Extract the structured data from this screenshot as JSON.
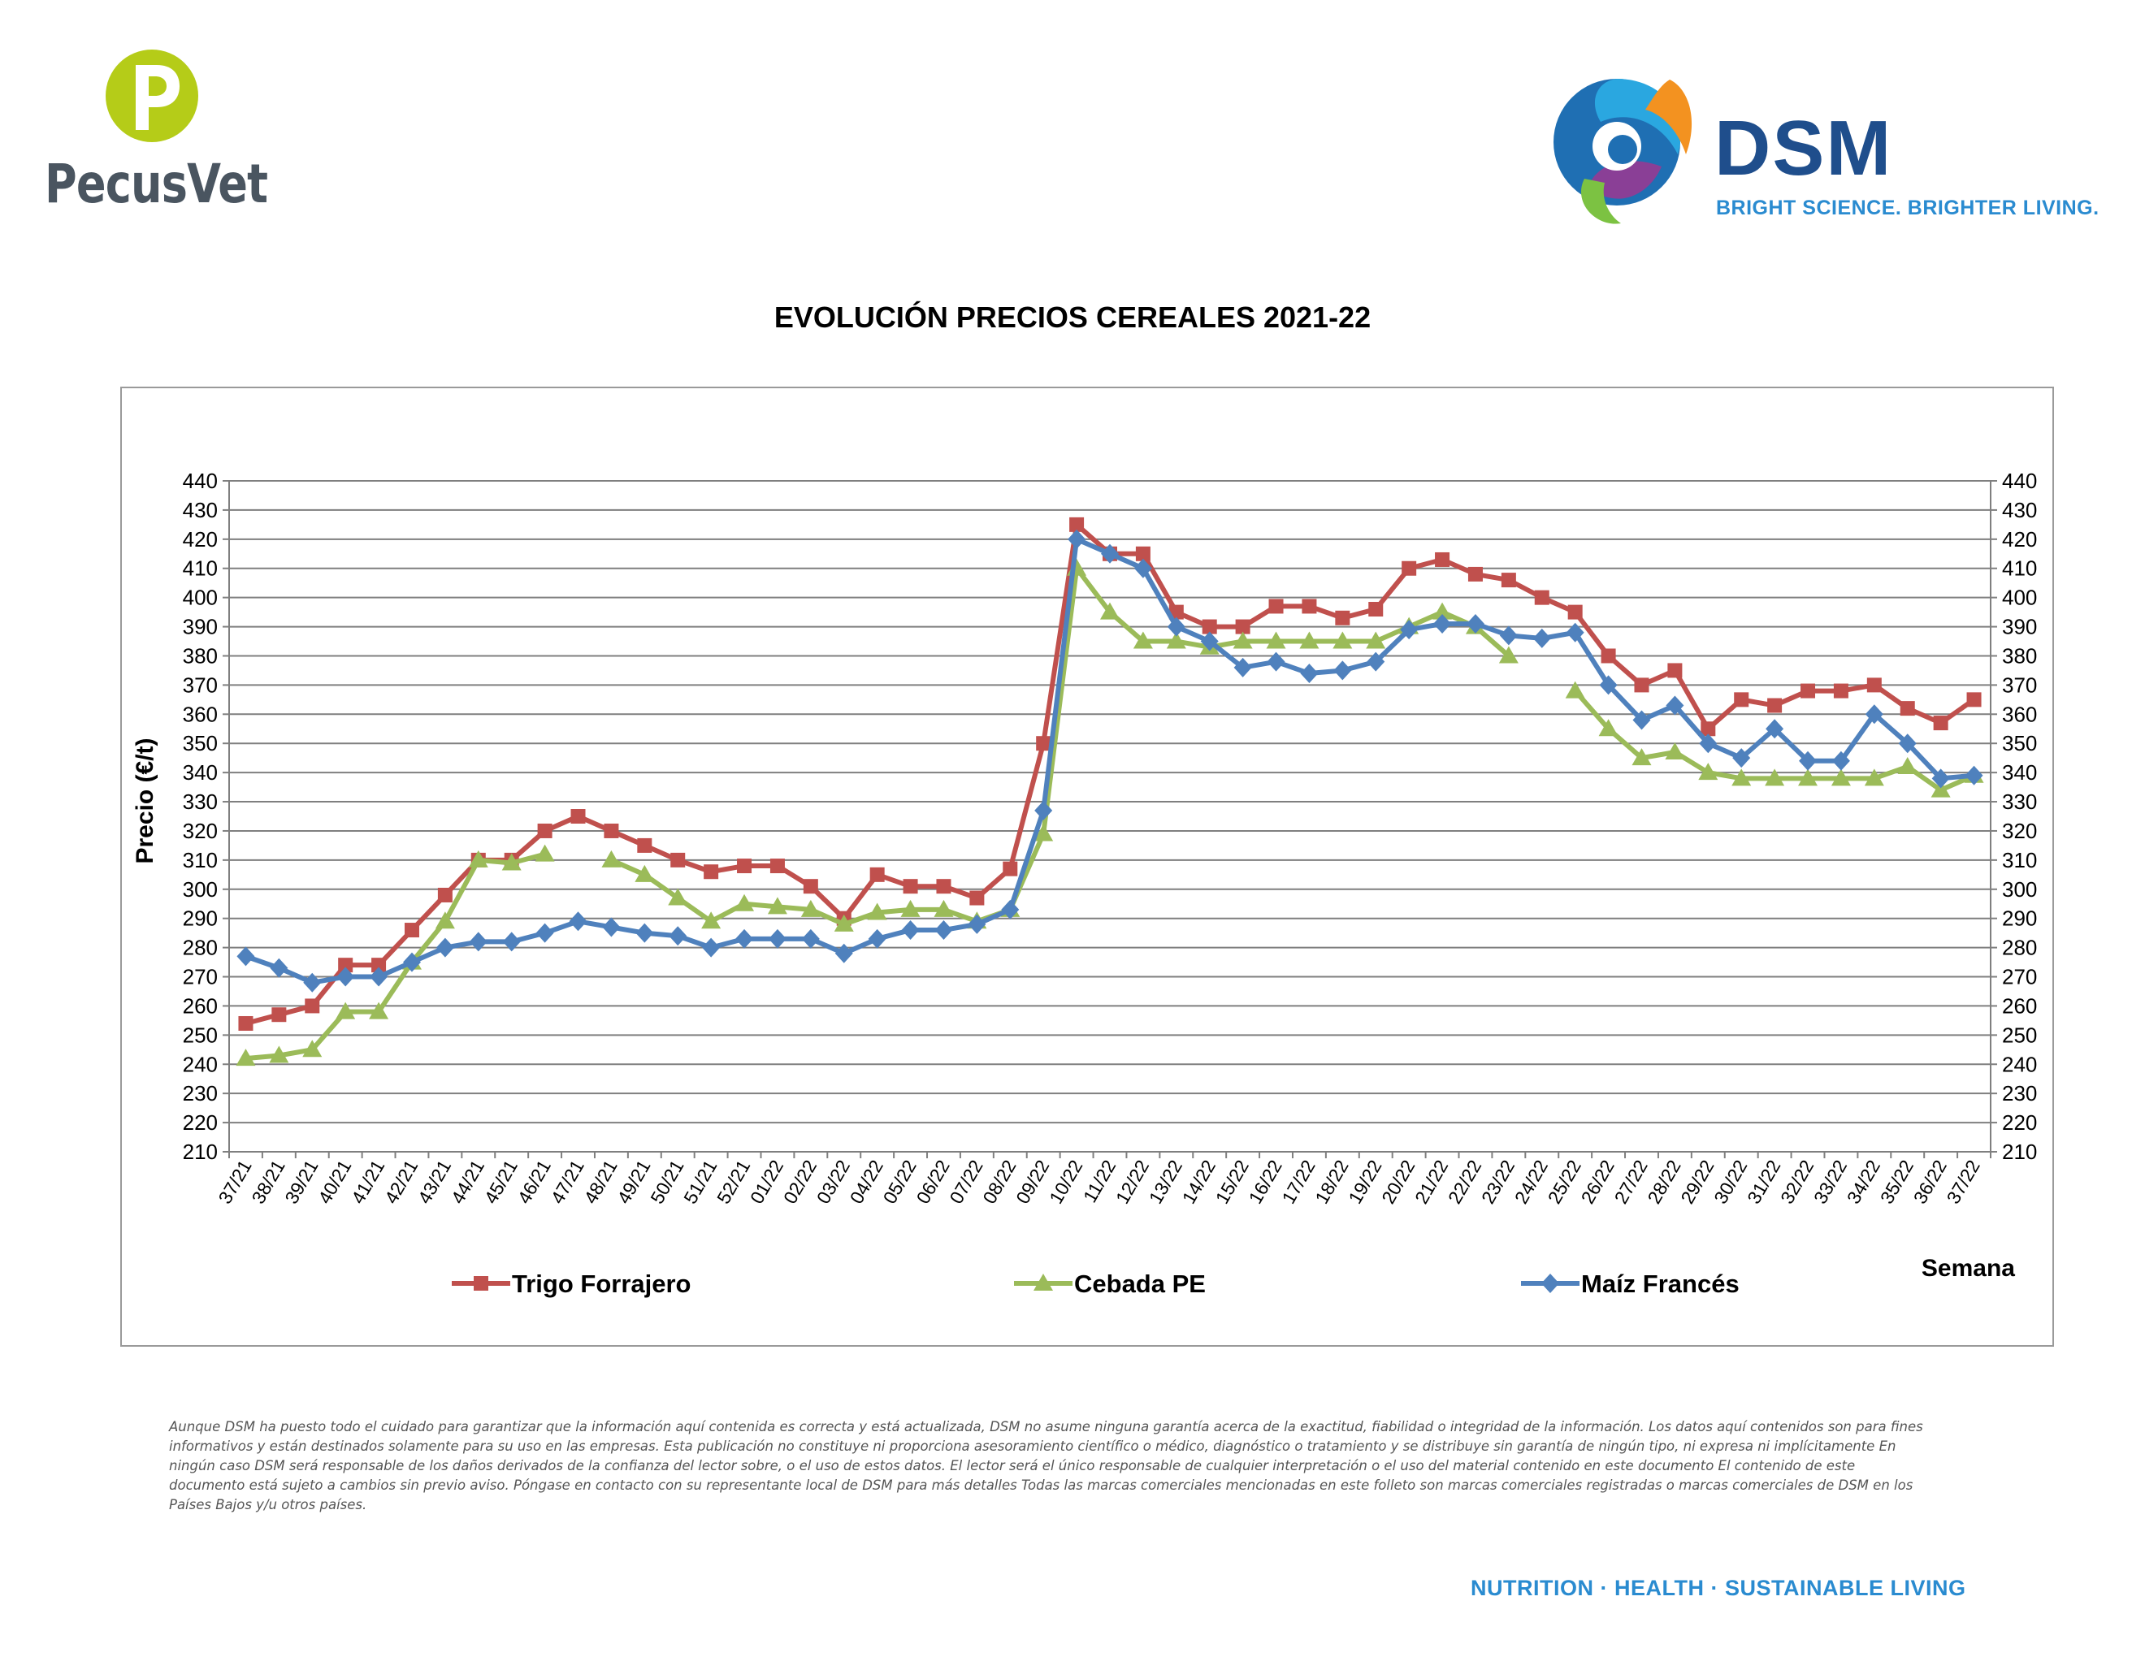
{
  "logos": {
    "left_brand": "PecusVet",
    "right_brand": "DSM",
    "right_tagline": "BRIGHT SCIENCE. BRIGHTER LIVING."
  },
  "colors": {
    "trigo": "#c0504d",
    "cebada": "#9bbb59",
    "maiz": "#4f81bd",
    "grid": "#7f7f7f",
    "brand_blue": "#1f4e8c",
    "accent_blue": "#2a8bd0"
  },
  "chart_data": {
    "type": "line",
    "title": "EVOLUCIÓN PRECIOS CEREALES 2021-22",
    "ylabel": "Precio (€/t)",
    "xlabel": "Semana",
    "ylim": [
      210,
      440
    ],
    "ytick_step": 10,
    "grid": true,
    "legend_position": "bottom",
    "right_axis_mirrored": true,
    "categories": [
      "37/21",
      "38/21",
      "39/21",
      "40/21",
      "41/21",
      "42/21",
      "43/21",
      "44/21",
      "45/21",
      "46/21",
      "47/21",
      "48/21",
      "49/21",
      "50/21",
      "51/21",
      "52/21",
      "01/22",
      "02/22",
      "03/22",
      "04/22",
      "05/22",
      "06/22",
      "07/22",
      "08/22",
      "09/22",
      "10/22",
      "11/22",
      "12/22",
      "13/22",
      "14/22",
      "15/22",
      "16/22",
      "17/22",
      "18/22",
      "19/22",
      "20/22",
      "21/22",
      "22/22",
      "23/22",
      "24/22",
      "25/22",
      "26/22",
      "27/22",
      "28/22",
      "29/22",
      "30/22",
      "31/22",
      "32/22",
      "33/22",
      "34/22",
      "35/22",
      "36/22",
      "37/22"
    ],
    "series": [
      {
        "name": "Trigo Forrajero",
        "marker": "square",
        "color": "#c0504d",
        "values": [
          254,
          257,
          260,
          274,
          274,
          286,
          298,
          310,
          310,
          320,
          325,
          320,
          315,
          310,
          306,
          308,
          308,
          301,
          290,
          305,
          301,
          301,
          297,
          307,
          350,
          425,
          415,
          415,
          395,
          390,
          390,
          397,
          397,
          393,
          396,
          410,
          413,
          408,
          406,
          400,
          395,
          380,
          370,
          375,
          355,
          365,
          363,
          368,
          368,
          370,
          362,
          357,
          365
        ]
      },
      {
        "name": "Cebada PE",
        "marker": "triangle",
        "color": "#9bbb59",
        "values": [
          242,
          243,
          245,
          258,
          258,
          275,
          289,
          310,
          309,
          312,
          null,
          310,
          305,
          297,
          289,
          295,
          294,
          293,
          288,
          292,
          293,
          293,
          289,
          293,
          319,
          410,
          395,
          385,
          385,
          383,
          385,
          385,
          385,
          385,
          385,
          390,
          395,
          390,
          380,
          null,
          368,
          355,
          345,
          347,
          340,
          338,
          338,
          338,
          338,
          338,
          342,
          334,
          339
        ]
      },
      {
        "name": "Maíz Francés",
        "marker": "diamond",
        "color": "#4f81bd",
        "values": [
          277,
          273,
          268,
          270,
          270,
          275,
          280,
          282,
          282,
          285,
          289,
          287,
          285,
          284,
          280,
          283,
          283,
          283,
          278,
          283,
          286,
          286,
          288,
          293,
          327,
          420,
          415,
          410,
          390,
          385,
          376,
          378,
          374,
          375,
          378,
          389,
          391,
          391,
          387,
          386,
          388,
          370,
          358,
          363,
          350,
          345,
          355,
          344,
          344,
          360,
          350,
          338,
          339
        ]
      }
    ]
  },
  "disclaimer": "Aunque DSM ha puesto todo el cuidado para garantizar que la información aquí contenida es correcta y está actualizada, DSM no asume ninguna garantía acerca de la exactitud, fiabilidad o integridad de la información. Los datos aquí contenidos son para fines informativos y están destinados solamente para su uso en las empresas. Esta publicación no constituye ni proporciona asesoramiento científico o médico, diagnóstico o tratamiento y se distribuye sin garantía de ningún tipo, ni expresa ni implícitamente En ningún caso DSM será responsable de los daños derivados de la confianza del lector sobre, o el uso de estos datos. El lector será el único responsable de cualquier interpretación o el uso del material contenido en este documento El contenido de este documento está sujeto a cambios sin previo aviso. Póngase en contacto con su representante local de DSM para más detalles Todas las marcas comerciales mencionadas en este folleto son marcas comerciales registradas o marcas comerciales de DSM en los Países Bajos y/u otros países.",
  "footer_tagline": "NUTRITION · HEALTH · SUSTAINABLE LIVING"
}
